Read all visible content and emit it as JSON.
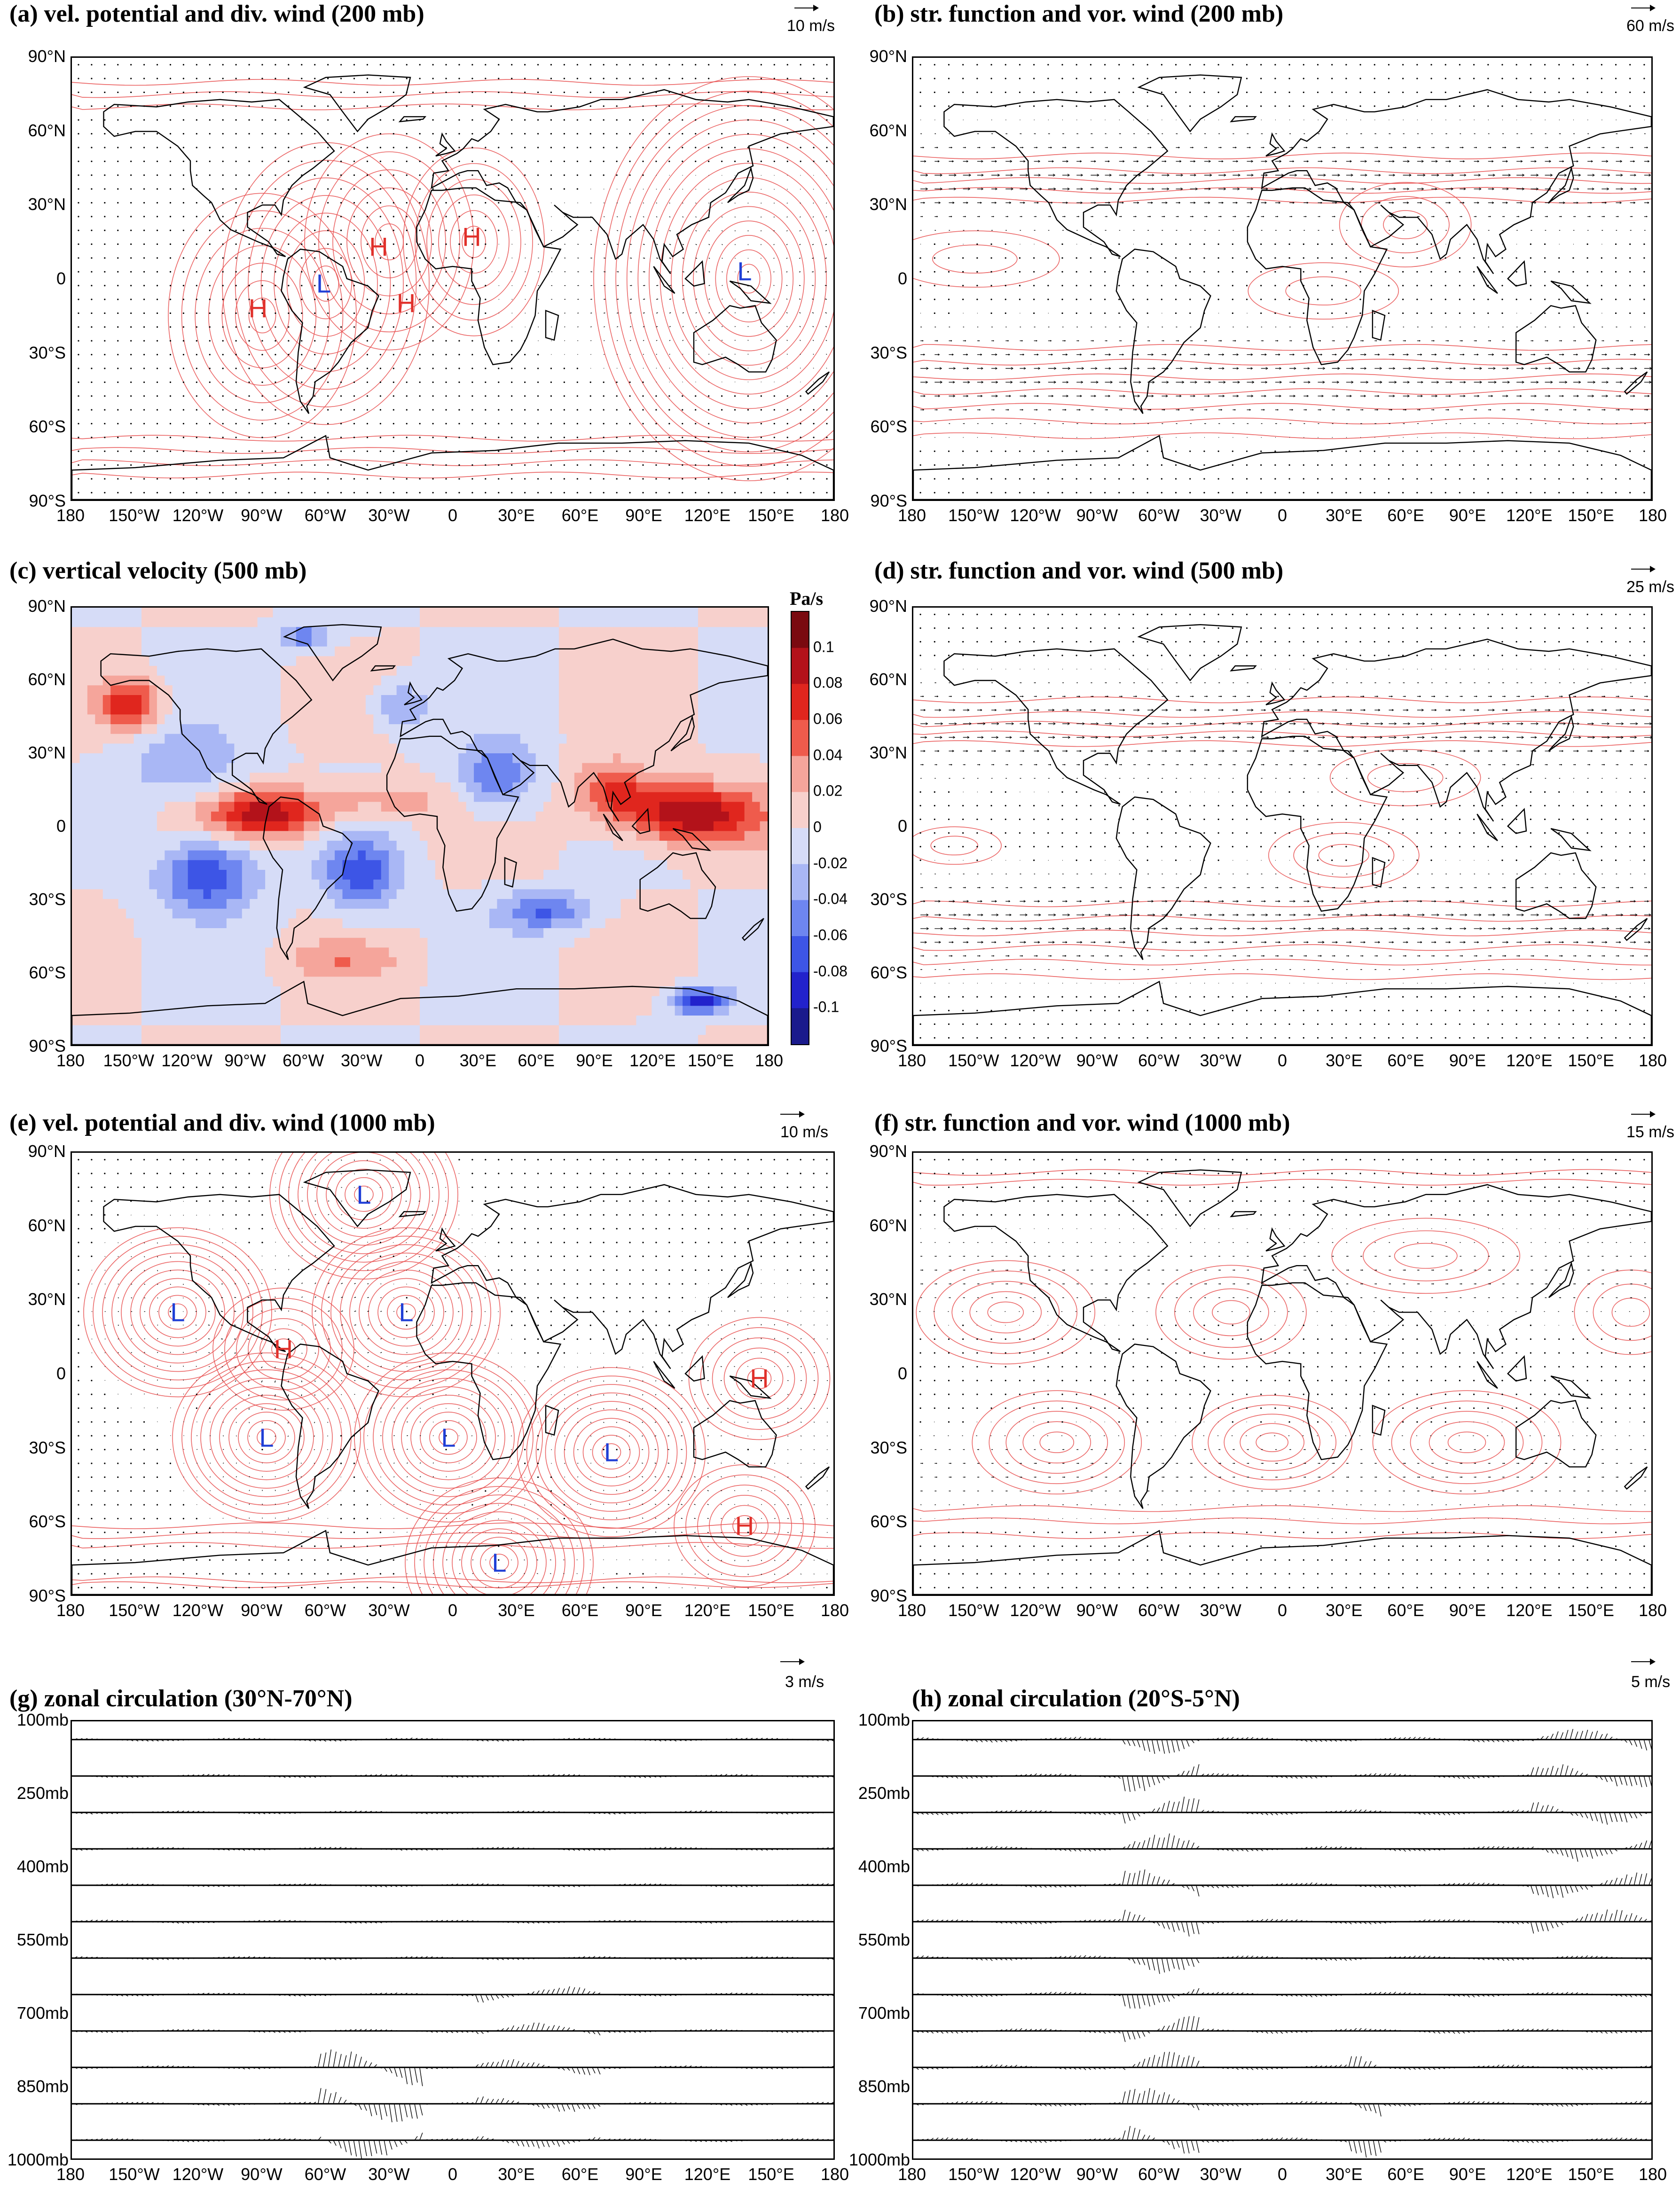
{
  "figure": {
    "x_ticks": [
      "180",
      "150°W",
      "120°W",
      "90°W",
      "60°W",
      "30°W",
      "0",
      "30°E",
      "60°E",
      "90°E",
      "120°E",
      "150°E",
      "180"
    ],
    "y_ticks": [
      "90°N",
      "60°N",
      "30°N",
      "0",
      "30°S",
      "60°S",
      "90°S"
    ],
    "level_ticks": [
      "100mb",
      "250mb",
      "400mb",
      "550mb",
      "700mb",
      "850mb",
      "1000mb"
    ],
    "colors": {
      "contour": "#e84c4c",
      "high": "#e0302a",
      "low": "#1f3fd6",
      "coast": "#000000"
    }
  },
  "chart_data": [
    {
      "id": "a",
      "type": "contour-vector-map",
      "title": "(a) vel. potential and div. wind (200 mb)",
      "scale_label": "10 m/s",
      "xlim": [
        -180,
        180
      ],
      "ylim": [
        -90,
        90
      ],
      "centers": [
        {
          "label": "H",
          "lon": -35,
          "lat": 13
        },
        {
          "label": "H",
          "lon": 9,
          "lat": 17
        },
        {
          "label": "H",
          "lon": -92,
          "lat": -12
        },
        {
          "label": "H",
          "lon": -22,
          "lat": -10
        },
        {
          "label": "L",
          "lon": -61,
          "lat": -2
        },
        {
          "label": "L",
          "lon": 138,
          "lat": 3
        }
      ]
    },
    {
      "id": "b",
      "type": "contour-vector-map",
      "title": "(b) str. function and vor. wind (200 mb)",
      "scale_label": "60 m/s",
      "xlim": [
        -180,
        180
      ],
      "ylim": [
        -90,
        90
      ],
      "centers": []
    },
    {
      "id": "c",
      "type": "heatmap",
      "title": "(c) vertical velocity (500 mb)",
      "units": "Pa/s",
      "xlim": [
        -180,
        180
      ],
      "ylim": [
        -90,
        90
      ],
      "colorbar_ticks": [
        "0.1",
        "0.08",
        "0.06",
        "0.04",
        "0.02",
        "0",
        "-0.02",
        "-0.04",
        "-0.06",
        "-0.08",
        "-0.1"
      ],
      "colorbar_range": [
        -0.12,
        0.12
      ]
    },
    {
      "id": "d",
      "type": "contour-vector-map",
      "title": "(d) str. function and vor. wind (500 mb)",
      "scale_label": "25 m/s",
      "xlim": [
        -180,
        180
      ],
      "ylim": [
        -90,
        90
      ],
      "centers": []
    },
    {
      "id": "e",
      "type": "contour-vector-map",
      "title": "(e) vel. potential and div. wind (1000 mb)",
      "scale_label": "10 m/s",
      "xlim": [
        -180,
        180
      ],
      "ylim": [
        -90,
        90
      ],
      "centers": [
        {
          "label": "L",
          "lon": -42,
          "lat": 73
        },
        {
          "label": "L",
          "lon": -130,
          "lat": 25
        },
        {
          "label": "L",
          "lon": -22,
          "lat": 25
        },
        {
          "label": "H",
          "lon": -80,
          "lat": 10
        },
        {
          "label": "H",
          "lon": 145,
          "lat": -2
        },
        {
          "label": "L",
          "lon": -88,
          "lat": -26
        },
        {
          "label": "L",
          "lon": -2,
          "lat": -26
        },
        {
          "label": "L",
          "lon": 75,
          "lat": -32
        },
        {
          "label": "H",
          "lon": 138,
          "lat": -62
        },
        {
          "label": "L",
          "lon": 22,
          "lat": -77
        }
      ]
    },
    {
      "id": "f",
      "type": "contour-vector-map",
      "title": "(f) str. function and vor. wind (1000 mb)",
      "scale_label": "15 m/s",
      "xlim": [
        -180,
        180
      ],
      "ylim": [
        -90,
        90
      ],
      "centers": []
    },
    {
      "id": "g",
      "type": "vector-section",
      "title": "(g) zonal circulation (30°N-70°N)",
      "scale_label": "3 m/s",
      "xlim": [
        -180,
        180
      ],
      "ylim_mb": [
        1000,
        100
      ]
    },
    {
      "id": "h",
      "type": "vector-section",
      "title": "(h) zonal circulation (20°S-5°N)",
      "scale_label": "5 m/s",
      "xlim": [
        -180,
        180
      ],
      "ylim_mb": [
        1000,
        100
      ]
    }
  ]
}
